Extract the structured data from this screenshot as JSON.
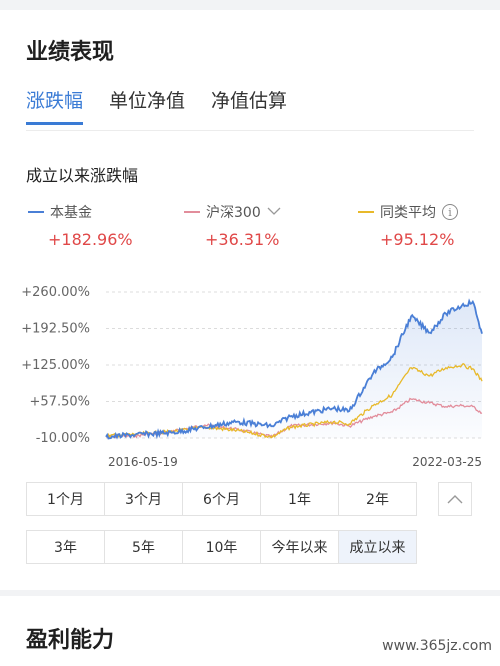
{
  "section1": {
    "title": "业绩表现"
  },
  "tabs": [
    {
      "label": "涨跌幅",
      "active": true
    },
    {
      "label": "单位净值",
      "active": false
    },
    {
      "label": "净值估算",
      "active": false
    }
  ],
  "chart_section": {
    "title": "成立以来涨跌幅"
  },
  "legend": [
    {
      "name": "本基金",
      "value": "+182.96%",
      "color": "#4a7fd6"
    },
    {
      "name": "沪深300",
      "value": "+36.31%",
      "color": "#e28d9b",
      "icon": "chevron-down-icon"
    },
    {
      "name": "同类平均",
      "value": "+95.12%",
      "color": "#e8b92a",
      "icon": "info-icon"
    }
  ],
  "chart_data": {
    "type": "line",
    "y_ticks": [
      "+260.00%",
      "+192.50%",
      "+125.00%",
      "+57.50%",
      "-10.00%"
    ],
    "ylim": [
      -10,
      260
    ],
    "x_labels": [
      "2016-05-19",
      "2022-03-25"
    ],
    "series": [
      {
        "name": "本基金",
        "color": "#4a7fd6",
        "x": [
          "2016-05-19",
          "2016-11-01",
          "2017-06-01",
          "2017-12-01",
          "2018-06-01",
          "2018-12-20",
          "2019-04-01",
          "2019-12-01",
          "2020-03-01",
          "2020-07-15",
          "2020-11-01",
          "2021-02-15",
          "2021-06-01",
          "2021-09-01",
          "2021-12-01",
          "2022-02-01",
          "2022-03-25"
        ],
        "values": [
          -8,
          -4,
          0,
          10,
          20,
          12,
          30,
          45,
          40,
          110,
          140,
          215,
          185,
          220,
          235,
          242,
          182.96
        ]
      },
      {
        "name": "沪深300",
        "color": "#e28d9b",
        "x": [
          "2016-05-19",
          "2016-11-01",
          "2017-06-01",
          "2017-12-01",
          "2018-06-01",
          "2018-12-20",
          "2019-04-01",
          "2019-12-01",
          "2020-03-01",
          "2020-07-15",
          "2020-11-01",
          "2021-02-15",
          "2021-06-01",
          "2021-09-01",
          "2021-12-01",
          "2022-02-01",
          "2022-03-25"
        ],
        "values": [
          -8,
          -6,
          2,
          14,
          6,
          -8,
          12,
          18,
          12,
          30,
          38,
          62,
          55,
          48,
          50,
          48,
          36.31
        ]
      },
      {
        "name": "同类平均",
        "color": "#e8b92a",
        "x": [
          "2016-05-19",
          "2016-11-01",
          "2017-06-01",
          "2017-12-01",
          "2018-06-01",
          "2018-12-20",
          "2019-04-01",
          "2019-12-01",
          "2020-03-01",
          "2020-07-15",
          "2020-11-01",
          "2021-02-15",
          "2021-06-01",
          "2021-09-01",
          "2021-12-01",
          "2022-02-01",
          "2022-03-25"
        ],
        "values": [
          -6,
          -3,
          2,
          10,
          4,
          -8,
          10,
          20,
          16,
          50,
          70,
          120,
          105,
          120,
          125,
          118,
          95.12
        ]
      }
    ]
  },
  "periods_row1": [
    "1个月",
    "3个月",
    "6个月",
    "1年",
    "2年"
  ],
  "periods_row2": [
    "3年",
    "5年",
    "10年",
    "今年以来",
    "成立以来"
  ],
  "selected_period": "成立以来",
  "section2": {
    "title": "盈利能力"
  },
  "watermark": "www.365jz.com"
}
